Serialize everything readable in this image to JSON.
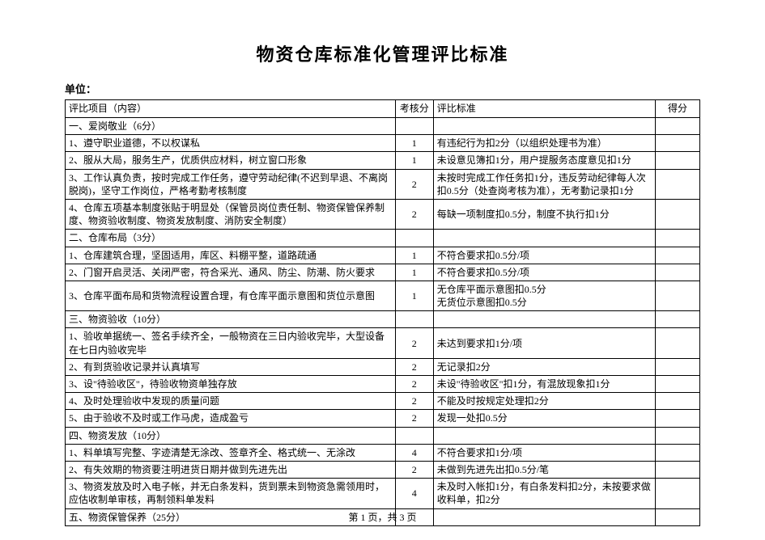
{
  "title": "物资仓库标准化管理评比标准",
  "unit_label": "单位：",
  "headers": {
    "item": "评比项目（内容）",
    "score": "考核分",
    "standard": "评比标准",
    "got": "得分"
  },
  "rows": [
    {
      "type": "section",
      "item": "一、爱岗敬业（6分）",
      "score": "",
      "standard": "",
      "got": ""
    },
    {
      "type": "data",
      "item": "1、遵守职业道德，不以权谋私",
      "score": "1",
      "standard": "有违纪行为扣2分（以组织处理书为准）",
      "got": ""
    },
    {
      "type": "data",
      "item": "2、服从大局，服务生产，优质供应材料，树立窗口形象",
      "score": "1",
      "standard": "未设意见簿扣1分，用户提服务态度意见扣1分",
      "got": ""
    },
    {
      "type": "data",
      "item": "3、工作认真负责，按时完成工作任务，遵守劳动纪律(不迟到早退、不离岗脱岗)，坚守工作岗位，严格考勤考核制度",
      "score": "2",
      "standard": "未按时完成工作任务扣1分，违反劳动纪律每人次扣0.5分（处查岗考核为准），无考勤记录扣1分",
      "got": ""
    },
    {
      "type": "data",
      "item": "4、仓库五项基本制度张贴于明显处（保管员岗位责任制、物资保管保养制度、物资验收制度、物资发放制度、消防安全制度）",
      "score": "2",
      "standard": "每缺一项制度扣0.5分，制度不执行扣1分",
      "got": ""
    },
    {
      "type": "section",
      "item": "二、仓库布局（3分）",
      "score": "",
      "standard": "",
      "got": ""
    },
    {
      "type": "data",
      "item": "1、仓库建筑合理，坚固适用，库区、料棚平整，道路疏通",
      "score": "1",
      "standard": "不符合要求扣0.5分/项",
      "got": ""
    },
    {
      "type": "data",
      "item": "2、门窗开启灵活、关闭严密，符合采光、通风、防尘、防潮、防火要求",
      "score": "1",
      "standard": "不符合要求扣0.5分/项",
      "got": ""
    },
    {
      "type": "data",
      "item": "3、仓库平面布局和货物流程设置合理，有仓库平面示意图和货位示意图",
      "score": "1",
      "standard": "无仓库平面示意图扣0.5分\n无货位示意图扣0.5分",
      "got": ""
    },
    {
      "type": "section",
      "item": "三、物资验收（10分）",
      "score": "",
      "standard": "",
      "got": ""
    },
    {
      "type": "data",
      "item": "1、验收单据统一、签名手续齐全，一般物资在三日内验收完毕，大型设备在七日内验收完毕",
      "score": "2",
      "standard": "未达到要求扣1分/项",
      "got": ""
    },
    {
      "type": "data",
      "item": "2、有到货验收记录并认真填写",
      "score": "2",
      "standard": "无记录扣2分",
      "got": ""
    },
    {
      "type": "data",
      "item": "3、设\"待验收区\"，待验收物资单独存放",
      "score": "2",
      "standard": "未设\"待验收区\"扣1分，有混放现象扣1分",
      "got": ""
    },
    {
      "type": "data",
      "item": "4、及时处理验收中发现的质量问题",
      "score": "2",
      "standard": "不能及时按规定处理扣2分",
      "got": ""
    },
    {
      "type": "data",
      "item": "5、由于验收不及时或工作马虎，造成盈亏",
      "score": "2",
      "standard": "发现一处扣0.5分",
      "got": ""
    },
    {
      "type": "section",
      "item": "四、物资发放（10分）",
      "score": "",
      "standard": "",
      "got": ""
    },
    {
      "type": "data",
      "item": "1、料单填写完整、字迹清楚无涂改、签章齐全、格式统一、无涂改",
      "score": "4",
      "standard": "不符合要求扣1分/项",
      "got": ""
    },
    {
      "type": "data",
      "item": "2、有失效期的物资要注明进货日期并做到先进先出",
      "score": "2",
      "standard": "未做到先进先出扣0.5分/笔",
      "got": ""
    },
    {
      "type": "data",
      "item": "3、物资发放及时入电子帐，并无白条发料，货到票未到物资急需领用时，应估收制单审核，再制领料单发料",
      "score": "4",
      "standard": "未及时入帐扣1分，有白条发料扣2分，未按要求做收料单，扣2分",
      "got": ""
    },
    {
      "type": "section",
      "item": "五、物资保管保养（25分）",
      "score": "",
      "standard": "",
      "got": ""
    }
  ],
  "footer": "第 1 页，共 3 页"
}
